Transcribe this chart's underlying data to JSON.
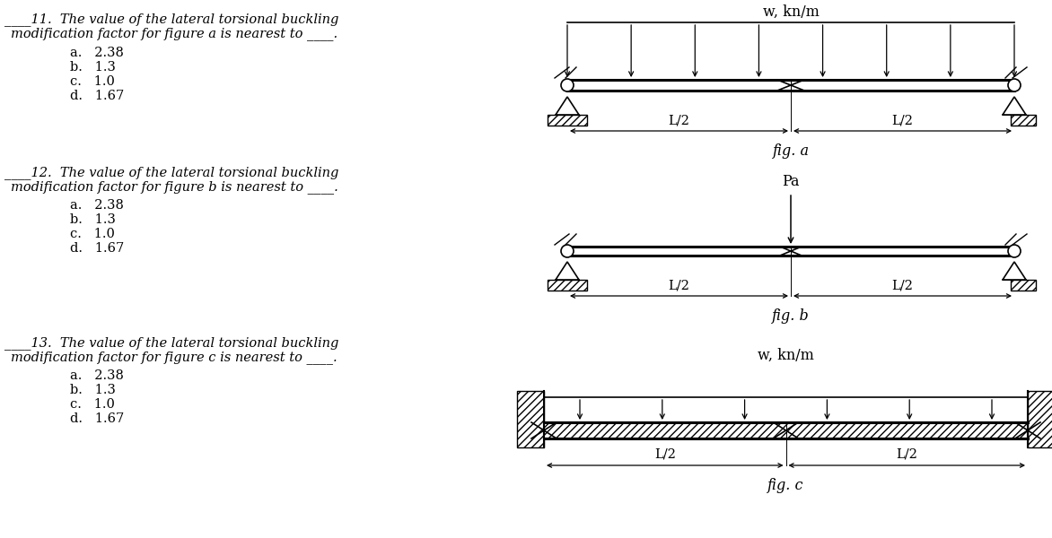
{
  "bg_color": "#ffffff",
  "q11_line1": "____11.  The value of the lateral torsional buckling",
  "q11_line2": "modification factor for figure a is nearest to ____.",
  "q11_a": "a.   2.38",
  "q11_b": "b.   1.3",
  "q11_c": "c.   1.0",
  "q11_d": "d.   1.67",
  "q12_line1": "____12.  The value of the lateral torsional buckling",
  "q12_line2": "modification factor for figure b is nearest to ____.",
  "q12_a": "a.   2.38",
  "q12_b": "b.   1.3",
  "q12_c": "c.   1.0",
  "q12_d": "d.   1.67",
  "q13_line1": "____13.  The value of the lateral torsional buckling",
  "q13_line2": "modification factor for figure c is nearest to ____.",
  "q13_a": "a.   2.38",
  "q13_b": "b.   1.3",
  "q13_c": "c.   1.0",
  "q13_d": "d.   1.67",
  "fig_a_label": "fig. a",
  "fig_b_label": "fig. b",
  "fig_c_label": "fig. c",
  "w_label": "w, kn/m",
  "Pa_label": "Pa",
  "L2_label": "L/2",
  "font_size_q": 10.5,
  "font_size_c": 10.5,
  "font_size_f": 10.5
}
